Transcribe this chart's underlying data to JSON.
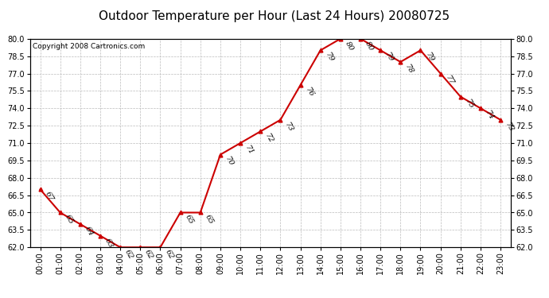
{
  "title": "Outdoor Temperature per Hour (Last 24 Hours) 20080725",
  "copyright": "Copyright 2008 Cartronics.com",
  "hours": [
    "00:00",
    "01:00",
    "02:00",
    "03:00",
    "04:00",
    "05:00",
    "06:00",
    "07:00",
    "08:00",
    "09:00",
    "10:00",
    "11:00",
    "12:00",
    "13:00",
    "14:00",
    "15:00",
    "16:00",
    "17:00",
    "18:00",
    "19:00",
    "20:00",
    "21:00",
    "22:00",
    "23:00"
  ],
  "temps": [
    67,
    65,
    64,
    63,
    62,
    62,
    62,
    65,
    65,
    70,
    71,
    72,
    73,
    76,
    79,
    80,
    80,
    79,
    78,
    79,
    77,
    75,
    74,
    73
  ],
  "ylim_min": 62.0,
  "ylim_max": 80.0,
  "yticks": [
    62.0,
    63.5,
    65.0,
    66.5,
    68.0,
    69.5,
    71.0,
    72.5,
    74.0,
    75.5,
    77.0,
    78.5,
    80.0
  ],
  "line_color": "#cc0000",
  "marker": "^",
  "marker_color": "#cc0000",
  "marker_size": 3.5,
  "grid_color": "#bbbbbb",
  "bg_color": "white",
  "label_fontsize": 7,
  "title_fontsize": 11,
  "copyright_fontsize": 6.5,
  "tick_fontsize": 7
}
